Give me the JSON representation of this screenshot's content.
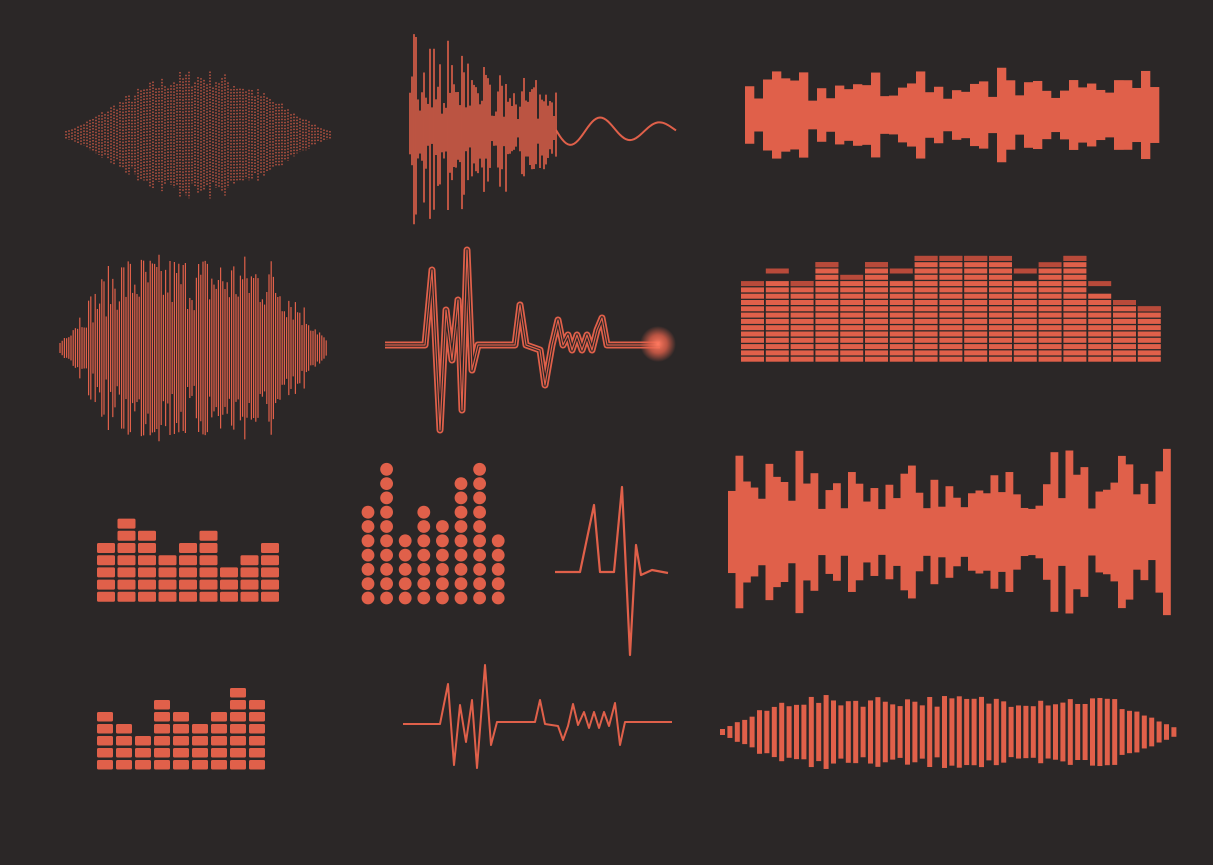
{
  "colors": {
    "background": "#2b2727",
    "wave": "#e0604a",
    "wave_dim": "#b84a3a"
  },
  "elements": [
    {
      "name": "dotted-spindle-wave"
    },
    {
      "name": "decaying-spike-wave"
    },
    {
      "name": "block-bar-wave-top"
    },
    {
      "name": "line-spindle-wave"
    },
    {
      "name": "outlined-heartbeat-line"
    },
    {
      "name": "segmented-equalizer-wide"
    },
    {
      "name": "segmented-equalizer-small-a"
    },
    {
      "name": "dot-equalizer"
    },
    {
      "name": "single-heartbeat"
    },
    {
      "name": "block-bar-wave-large"
    },
    {
      "name": "segmented-equalizer-small-b"
    },
    {
      "name": "heartbeat-line"
    },
    {
      "name": "spindle-bar-wave"
    }
  ]
}
